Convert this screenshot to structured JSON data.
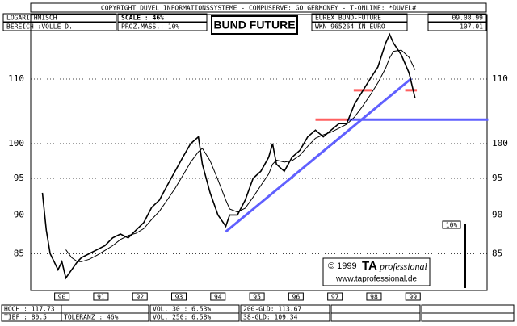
{
  "header": {
    "copyright": "COPYRIGHT  DUVEL INFORMATIONSSYSTEME - COMPUSERVE: GO GERMONEY - T-ONLINE: *DUVEL#",
    "mode": "LOGARITHMISCH",
    "range": "BEREICH :VOLLE D.",
    "scale": "SCALE : 46%",
    "proz": "PROZ.MASS.: 10%",
    "instrument": "EUREX BUND-FUTURE",
    "wkn": "WKN 965264   IN EURO",
    "date": "09.08.99",
    "last": "107.01"
  },
  "chart_data": {
    "type": "line",
    "title": "BUND FUTURE",
    "log_scale": true,
    "grid": true,
    "x": [
      90.0,
      90.1,
      90.2,
      90.3,
      90.4,
      90.5,
      90.6,
      90.75,
      90.9,
      91.0,
      91.2,
      91.4,
      91.6,
      91.8,
      92.0,
      92.2,
      92.4,
      92.6,
      92.8,
      93.0,
      93.2,
      93.4,
      93.6,
      93.8,
      94.0,
      94.1,
      94.3,
      94.5,
      94.7,
      94.8,
      95.0,
      95.2,
      95.4,
      95.6,
      95.8,
      95.9,
      96.0,
      96.2,
      96.4,
      96.6,
      96.8,
      97.0,
      97.2,
      97.4,
      97.6,
      97.8,
      98.0,
      98.2,
      98.4,
      98.6,
      98.8,
      98.9,
      99.0,
      99.2,
      99.4,
      99.55
    ],
    "series": [
      {
        "color": "#000000",
        "values": [
          93,
          88,
          85,
          84,
          83,
          84,
          82,
          83,
          84,
          84.5,
          85,
          85.5,
          86,
          87,
          87.5,
          87,
          88,
          89,
          91,
          92,
          94,
          96,
          98,
          100,
          101,
          97,
          93,
          90,
          88.5,
          90,
          90,
          92,
          95,
          96,
          98,
          100,
          97,
          96,
          98,
          99,
          101,
          102,
          101,
          102,
          103,
          103,
          106,
          108,
          110,
          112,
          116,
          117.5,
          116,
          114,
          111,
          107
        ]
      },
      {
        "color": "#000000",
        "values": [
          null,
          null,
          null,
          null,
          null,
          null,
          85.5,
          84.5,
          84,
          84,
          84.3,
          84.8,
          85.4,
          86,
          86.8,
          87.3,
          87.6,
          88.2,
          89.4,
          90.5,
          92,
          93.6,
          95.4,
          97.3,
          98.8,
          99.3,
          97.5,
          94.8,
          92,
          90.8,
          90.4,
          90.9,
          92.4,
          94,
          95.6,
          97,
          97.6,
          97.3,
          97.5,
          98.3,
          99.6,
          100.8,
          101.3,
          101.7,
          102.3,
          102.9,
          104,
          105.6,
          107.4,
          109.4,
          111.8,
          113.5,
          114.6,
          114.8,
          113.6,
          111.5
        ]
      }
    ],
    "levels": [
      {
        "x": [
          93.7,
          97.0
        ],
        "y": 102.2,
        "color": "#ff6060",
        "glow": true
      },
      {
        "x": [
          97.23,
          101.43
        ],
        "y": 101.6,
        "color": "#4040ff",
        "glow": true
      },
      {
        "x": [
          97.85,
          101.43
        ],
        "y": 103.6,
        "color": "#6060ff",
        "glow": false
      },
      {
        "x": [
          97.0,
          97.85
        ],
        "y": 103.6,
        "color": "#ff6060",
        "glow": false
      },
      {
        "x": [
          97.98,
          98.46
        ],
        "y": 108.2,
        "color": "#ff6060",
        "glow": false
      },
      {
        "x": [
          99.3,
          99.6
        ],
        "y": 108.2,
        "color": "#ff6060",
        "glow": false
      }
    ],
    "trendlines": [
      {
        "x": [
          94.7,
          99.46
        ],
        "y": [
          87.8,
          110.1
        ],
        "color": "#6060ff"
      }
    ],
    "xlim": [
      89.7,
      101.4
    ],
    "ylim": [
      80.5,
      121
    ],
    "xticks": [
      {
        "value": 90.5,
        "label": "90"
      },
      {
        "value": 91.5,
        "label": "91"
      },
      {
        "value": 92.5,
        "label": "92"
      },
      {
        "value": 93.5,
        "label": "93"
      },
      {
        "value": 94.5,
        "label": "94"
      },
      {
        "value": 95.5,
        "label": "95"
      },
      {
        "value": 96.5,
        "label": "96"
      },
      {
        "value": 97.5,
        "label": "97"
      },
      {
        "value": 98.5,
        "label": "98"
      },
      {
        "value": 99.5,
        "label": "99"
      }
    ],
    "yticks": [
      85,
      90,
      95,
      100,
      110
    ]
  },
  "volatility_label": "10%",
  "credit": {
    "year": "© 1999",
    "brand": "TA",
    "brand_sub": "professional",
    "url": "www.taprofessional.de"
  },
  "footer": [
    [
      "HOCH : 117.73",
      "",
      "VOL. 30  : 6.53%",
      "200-GLD: 113.67"
    ],
    [
      "TIEF : 80.5",
      "TOLERANZ : 46%",
      "VOL. 250: 6.58%",
      "38-GLD: 109.34"
    ]
  ]
}
